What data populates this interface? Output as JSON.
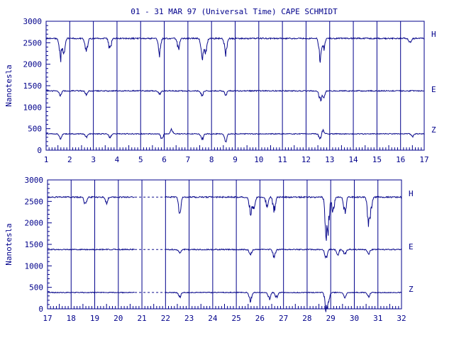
{
  "title": "01 - 31 MAR 97 (Universal Time) CAPE SCHMIDT",
  "colors": {
    "trace": "#0a0a8c",
    "axis": "#00008b",
    "text": "#00008b"
  },
  "chart_data": [
    {
      "type": "line",
      "ylabel": "Nanotesla",
      "ylim": [
        0,
        3000
      ],
      "yticks": [
        "0",
        "500",
        "1000",
        "1500",
        "2000",
        "2500",
        "3000"
      ],
      "xlim": [
        1,
        17
      ],
      "xticks": [
        "1",
        "2",
        "3",
        "4",
        "5",
        "6",
        "7",
        "8",
        "9",
        "10",
        "11",
        "12",
        "13",
        "14",
        "15",
        "16",
        "17"
      ],
      "components": [
        "H",
        "E",
        "Z"
      ],
      "grid": "vertical lines at each day",
      "series": [
        {
          "name": "H",
          "baseline": 2600,
          "noise": 30,
          "variable": true,
          "events": [
            [
              1.6,
              -500
            ],
            [
              1.75,
              -350
            ],
            [
              2.7,
              -380
            ],
            [
              3.7,
              -300
            ],
            [
              5.8,
              -380
            ],
            [
              6.6,
              -250
            ],
            [
              7.6,
              -480
            ],
            [
              7.75,
              -420
            ],
            [
              8.6,
              -420
            ],
            [
              12.6,
              -550
            ],
            [
              12.75,
              -250
            ],
            [
              16.4,
              -100
            ]
          ],
          "gaps": []
        },
        {
          "name": "E",
          "baseline": 1380,
          "noise": 25,
          "variable": true,
          "events": [
            [
              1.6,
              -120
            ],
            [
              2.7,
              -100
            ],
            [
              5.8,
              -90
            ],
            [
              7.6,
              -120
            ],
            [
              8.6,
              -110
            ],
            [
              12.6,
              -250
            ],
            [
              12.75,
              -150
            ]
          ],
          "gaps": []
        },
        {
          "name": "Z",
          "baseline": 380,
          "noise": 20,
          "variable": true,
          "events": [
            [
              1.6,
              -120
            ],
            [
              2.7,
              -80
            ],
            [
              3.7,
              -90
            ],
            [
              5.9,
              -120
            ],
            [
              6.3,
              110
            ],
            [
              7.6,
              -150
            ],
            [
              8.6,
              -170
            ],
            [
              12.6,
              -160
            ],
            [
              12.7,
              110
            ],
            [
              16.5,
              -70
            ]
          ],
          "gaps": []
        }
      ]
    },
    {
      "type": "line",
      "ylabel": "Nanotesla",
      "ylim": [
        0,
        3000
      ],
      "yticks": [
        "0",
        "500",
        "1000",
        "1500",
        "2000",
        "2500",
        "3000"
      ],
      "xlim": [
        17,
        32
      ],
      "xticks": [
        "17",
        "18",
        "19",
        "20",
        "21",
        "22",
        "23",
        "24",
        "25",
        "26",
        "27",
        "28",
        "29",
        "30",
        "31",
        "32"
      ],
      "components": [
        "H",
        "E",
        "Z"
      ],
      "grid": "vertical lines at each day",
      "series": [
        {
          "name": "H",
          "baseline": 2600,
          "noise": 30,
          "variable": true,
          "events": [
            [
              18.6,
              -200
            ],
            [
              19.5,
              -150
            ],
            [
              22.6,
              -400
            ],
            [
              25.6,
              -400
            ],
            [
              25.75,
              -300
            ],
            [
              26.3,
              -250
            ],
            [
              26.6,
              -350
            ],
            [
              28.8,
              -800
            ],
            [
              28.9,
              -700
            ],
            [
              29.1,
              -350
            ],
            [
              29.6,
              -400
            ],
            [
              30.6,
              -600
            ],
            [
              30.7,
              -300
            ]
          ],
          "gaps": [
            [
              20.7,
              22.0
            ]
          ]
        },
        {
          "name": "E",
          "baseline": 1380,
          "noise": 25,
          "variable": true,
          "events": [
            [
              22.6,
              -100
            ],
            [
              25.6,
              -120
            ],
            [
              26.6,
              -200
            ],
            [
              28.8,
              -250
            ],
            [
              29.3,
              -120
            ],
            [
              29.6,
              -120
            ],
            [
              30.6,
              -100
            ]
          ],
          "gaps": [
            [
              20.7,
              22.0
            ]
          ]
        },
        {
          "name": "Z",
          "baseline": 380,
          "noise": 20,
          "variable": true,
          "events": [
            [
              22.6,
              -120
            ],
            [
              25.6,
              -220
            ],
            [
              26.4,
              -150
            ],
            [
              26.7,
              -130
            ],
            [
              28.8,
              -380
            ],
            [
              28.9,
              -200
            ],
            [
              29.6,
              -120
            ],
            [
              30.6,
              -120
            ]
          ],
          "gaps": [
            [
              20.7,
              22.0
            ]
          ]
        }
      ]
    }
  ]
}
